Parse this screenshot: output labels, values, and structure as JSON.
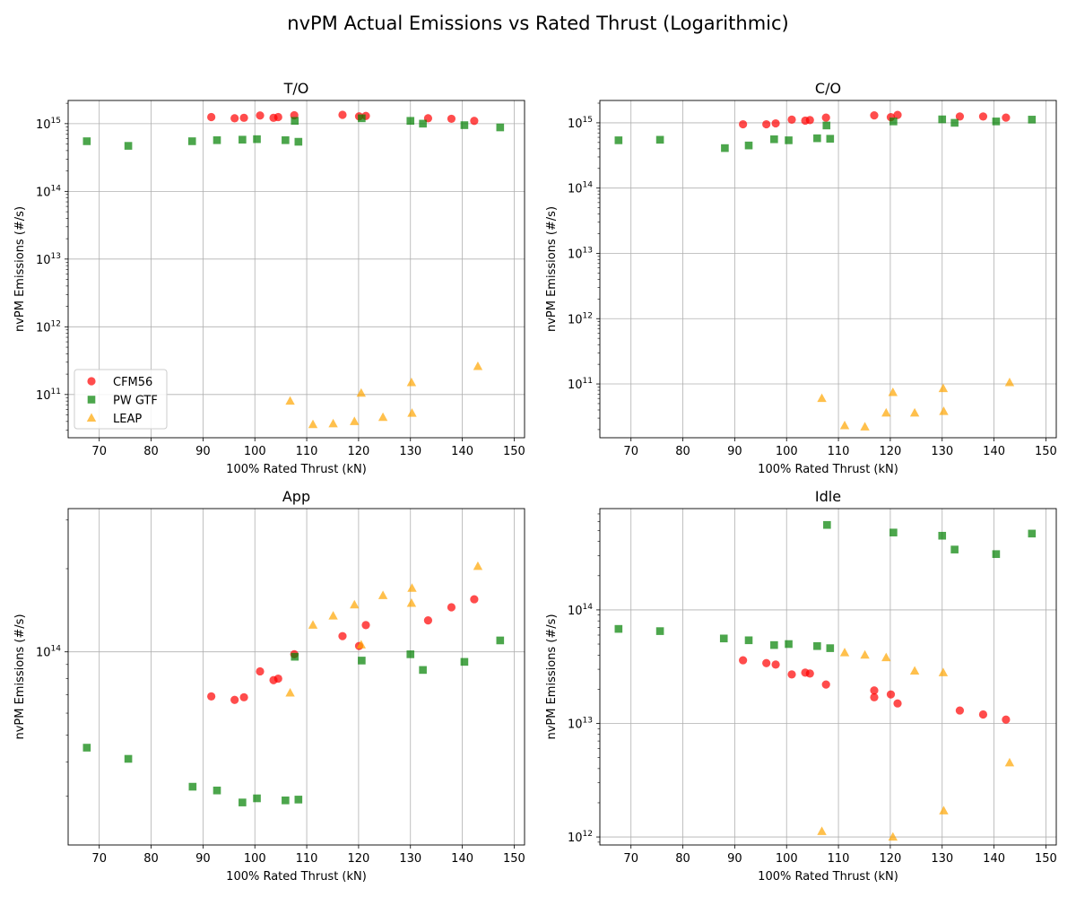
{
  "figure": {
    "title": "nvPM Actual Emissions vs Rated Thrust (Logarithmic)"
  },
  "colors": {
    "CFM56": "#ff0000",
    "PW GTF": "#008000",
    "LEAP": "#ffa500",
    "grid": "#b0b0b0"
  },
  "chart_data": [
    {
      "type": "scatter",
      "title": "T/O",
      "xlabel": "100% Rated Thrust (kN)",
      "ylabel": "nvPM Emissions (#/s)",
      "yscale": "log",
      "xlim": [
        64,
        152
      ],
      "ylim": [
        23000000000.0,
        2200000000000000.0
      ],
      "xticks": [
        70,
        80,
        90,
        100,
        110,
        120,
        130,
        140,
        150
      ],
      "yticks": [
        100000000000.0,
        1000000000000.0,
        10000000000000.0,
        100000000000000.0,
        1000000000000000.0
      ],
      "ytick_labels": [
        [
          "10",
          "11"
        ],
        [
          "10",
          "12"
        ],
        [
          "10",
          "13"
        ],
        [
          "10",
          "14"
        ],
        [
          "10",
          "15"
        ]
      ],
      "grid": true,
      "legend": {
        "position": "lower-left",
        "entries": [
          "CFM56",
          "PW GTF",
          "LEAP"
        ]
      },
      "series": [
        {
          "name": "CFM56",
          "marker": "circle",
          "x": [
            91.6,
            96.1,
            97.9,
            101.0,
            103.6,
            104.5,
            107.6,
            116.9,
            120.1,
            121.4,
            133.4,
            137.9,
            142.3
          ],
          "y": [
            1250000000000000.0,
            1200000000000000.0,
            1220000000000000.0,
            1320000000000000.0,
            1220000000000000.0,
            1250000000000000.0,
            1330000000000000.0,
            1350000000000000.0,
            1280000000000000.0,
            1300000000000000.0,
            1200000000000000.0,
            1180000000000000.0,
            1100000000000000.0
          ]
        },
        {
          "name": "PW GTF",
          "marker": "square",
          "x": [
            67.6,
            75.6,
            87.9,
            92.7,
            97.6,
            100.4,
            105.9,
            107.7,
            108.4,
            120.6,
            130.0,
            132.4,
            140.4,
            147.3
          ],
          "y": [
            550000000000000.0,
            470000000000000.0,
            550000000000000.0,
            570000000000000.0,
            580000000000000.0,
            590000000000000.0,
            570000000000000.0,
            1100000000000000.0,
            540000000000000.0,
            1200000000000000.0,
            1100000000000000.0,
            1000000000000000.0,
            950000000000000.0,
            880000000000000.0
          ]
        },
        {
          "name": "LEAP",
          "marker": "triangle",
          "x": [
            106.8,
            111.2,
            115.1,
            119.2,
            120.5,
            124.7,
            130.2,
            130.3,
            143.0
          ],
          "y": [
            80000000000.0,
            36000000000.0,
            37000000000.0,
            40000000000.0,
            105000000000.0,
            46000000000.0,
            150000000000.0,
            53000000000.0,
            260000000000.0
          ]
        }
      ]
    },
    {
      "type": "scatter",
      "title": "C/O",
      "xlabel": "100% Rated Thrust (kN)",
      "ylabel": "nvPM Emissions (#/s)",
      "yscale": "log",
      "xlim": [
        64,
        152
      ],
      "ylim": [
        15000000000.0,
        2200000000000000.0
      ],
      "xticks": [
        70,
        80,
        90,
        100,
        110,
        120,
        130,
        140,
        150
      ],
      "yticks": [
        100000000000.0,
        1000000000000.0,
        10000000000000.0,
        100000000000000.0,
        1000000000000000.0
      ],
      "ytick_labels": [
        [
          "10",
          "11"
        ],
        [
          "10",
          "12"
        ],
        [
          "10",
          "13"
        ],
        [
          "10",
          "14"
        ],
        [
          "10",
          "15"
        ]
      ],
      "grid": true,
      "series": [
        {
          "name": "CFM56",
          "marker": "circle",
          "x": [
            91.6,
            96.1,
            97.9,
            101.0,
            103.6,
            104.5,
            107.6,
            116.9,
            120.1,
            121.4,
            133.4,
            137.9,
            142.3
          ],
          "y": [
            950000000000000.0,
            950000000000000.0,
            980000000000000.0,
            1120000000000000.0,
            1080000000000000.0,
            1100000000000000.0,
            1200000000000000.0,
            1300000000000000.0,
            1220000000000000.0,
            1320000000000000.0,
            1250000000000000.0,
            1250000000000000.0,
            1200000000000000.0
          ]
        },
        {
          "name": "PW GTF",
          "marker": "square",
          "x": [
            67.6,
            75.6,
            88.1,
            92.7,
            97.6,
            100.4,
            105.9,
            107.7,
            108.4,
            120.6,
            130.0,
            132.4,
            140.4,
            147.3
          ],
          "y": [
            540000000000000.0,
            550000000000000.0,
            410000000000000.0,
            450000000000000.0,
            560000000000000.0,
            540000000000000.0,
            580000000000000.0,
            910000000000000.0,
            570000000000000.0,
            1050000000000000.0,
            1130000000000000.0,
            1000000000000000.0,
            1050000000000000.0,
            1120000000000000.0
          ]
        },
        {
          "name": "LEAP",
          "marker": "triangle",
          "x": [
            106.8,
            111.2,
            115.1,
            119.2,
            120.5,
            124.7,
            130.2,
            130.3,
            143.0
          ],
          "y": [
            60000000000.0,
            23000000000.0,
            22000000000.0,
            36000000000.0,
            74000000000.0,
            36000000000.0,
            85000000000.0,
            38000000000.0,
            105000000000.0
          ]
        }
      ]
    },
    {
      "type": "scatter",
      "title": "App",
      "xlabel": "100% Rated Thrust (kN)",
      "ylabel": "nvPM Emissions (#/s)",
      "yscale": "log",
      "xlim": [
        64,
        152
      ],
      "ylim": [
        20000000000000.0,
        330000000000000.0
      ],
      "xticks": [
        70,
        80,
        90,
        100,
        110,
        120,
        130,
        140,
        150
      ],
      "yticks": [
        100000000000000.0
      ],
      "ytick_labels": [
        [
          "10",
          "14"
        ]
      ],
      "grid": true,
      "series": [
        {
          "name": "CFM56",
          "marker": "circle",
          "x": [
            91.6,
            96.1,
            97.9,
            101.0,
            103.6,
            104.5,
            107.6,
            116.9,
            120.1,
            121.4,
            133.4,
            137.9,
            142.3
          ],
          "y": [
            69000000000000.0,
            67000000000000.0,
            68500000000000.0,
            85000000000000.0,
            79000000000000.0,
            80000000000000.0,
            98000000000000.0,
            114000000000000.0,
            105000000000000.0,
            125000000000000.0,
            130000000000000.0,
            145000000000000.0,
            155000000000000.0
          ]
        },
        {
          "name": "PW GTF",
          "marker": "square",
          "x": [
            67.6,
            75.6,
            88.0,
            92.7,
            97.6,
            100.4,
            105.9,
            107.7,
            108.4,
            120.6,
            130.0,
            132.4,
            140.4,
            147.3
          ],
          "y": [
            45000000000000.0,
            41000000000000.0,
            32500000000000.0,
            31500000000000.0,
            28500000000000.0,
            29500000000000.0,
            29000000000000.0,
            96000000000000.0,
            29200000000000.0,
            93000000000000.0,
            98000000000000.0,
            86000000000000.0,
            92000000000000.0,
            110000000000000.0
          ]
        },
        {
          "name": "LEAP",
          "marker": "triangle",
          "x": [
            106.8,
            111.2,
            115.1,
            119.2,
            120.5,
            124.7,
            130.2,
            130.3,
            143.0
          ],
          "y": [
            71000000000000.0,
            125000000000000.0,
            135000000000000.0,
            148000000000000.0,
            106000000000000.0,
            160000000000000.0,
            150000000000000.0,
            170000000000000.0,
            204000000000000.0
          ]
        }
      ]
    },
    {
      "type": "scatter",
      "title": "Idle",
      "xlabel": "100% Rated Thrust (kN)",
      "ylabel": "nvPM Emissions (#/s)",
      "yscale": "log",
      "xlim": [
        64,
        152
      ],
      "ylim": [
        850000000000.0,
        780000000000000.0
      ],
      "xticks": [
        70,
        80,
        90,
        100,
        110,
        120,
        130,
        140,
        150
      ],
      "yticks": [
        1000000000000.0,
        10000000000000.0,
        100000000000000.0
      ],
      "ytick_labels": [
        [
          "10",
          "12"
        ],
        [
          "10",
          "13"
        ],
        [
          "10",
          "14"
        ]
      ],
      "grid": true,
      "series": [
        {
          "name": "CFM56",
          "marker": "circle",
          "x": [
            91.6,
            96.1,
            97.9,
            101.0,
            103.6,
            104.5,
            107.6,
            116.9,
            116.9,
            120.1,
            121.4,
            133.4,
            137.9,
            142.3
          ],
          "y": [
            36000000000000.0,
            34000000000000.0,
            33000000000000.0,
            27000000000000.0,
            28000000000000.0,
            27500000000000.0,
            22000000000000.0,
            19500000000000.0,
            17000000000000.0,
            18000000000000.0,
            15000000000000.0,
            13000000000000.0,
            12000000000000.0,
            10800000000000.0
          ]
        },
        {
          "name": "PW GTF",
          "marker": "square",
          "x": [
            67.6,
            75.6,
            87.9,
            92.7,
            97.6,
            100.4,
            105.9,
            107.8,
            108.4,
            120.6,
            130.0,
            132.4,
            140.4,
            147.3
          ],
          "y": [
            68000000000000.0,
            65000000000000.0,
            56000000000000.0,
            54000000000000.0,
            49000000000000.0,
            50000000000000.0,
            48000000000000.0,
            560000000000000.0,
            46000000000000.0,
            480000000000000.0,
            450000000000000.0,
            340000000000000.0,
            310000000000000.0,
            470000000000000.0
          ]
        },
        {
          "name": "LEAP",
          "marker": "triangle",
          "x": [
            106.8,
            111.2,
            115.1,
            119.2,
            120.5,
            124.7,
            130.2,
            130.3,
            143.0
          ],
          "y": [
            1120000000000.0,
            42000000000000.0,
            40000000000000.0,
            38000000000000.0,
            1000000000000.0,
            29000000000000.0,
            28000000000000.0,
            1700000000000.0,
            4500000000000.0
          ]
        }
      ]
    }
  ]
}
